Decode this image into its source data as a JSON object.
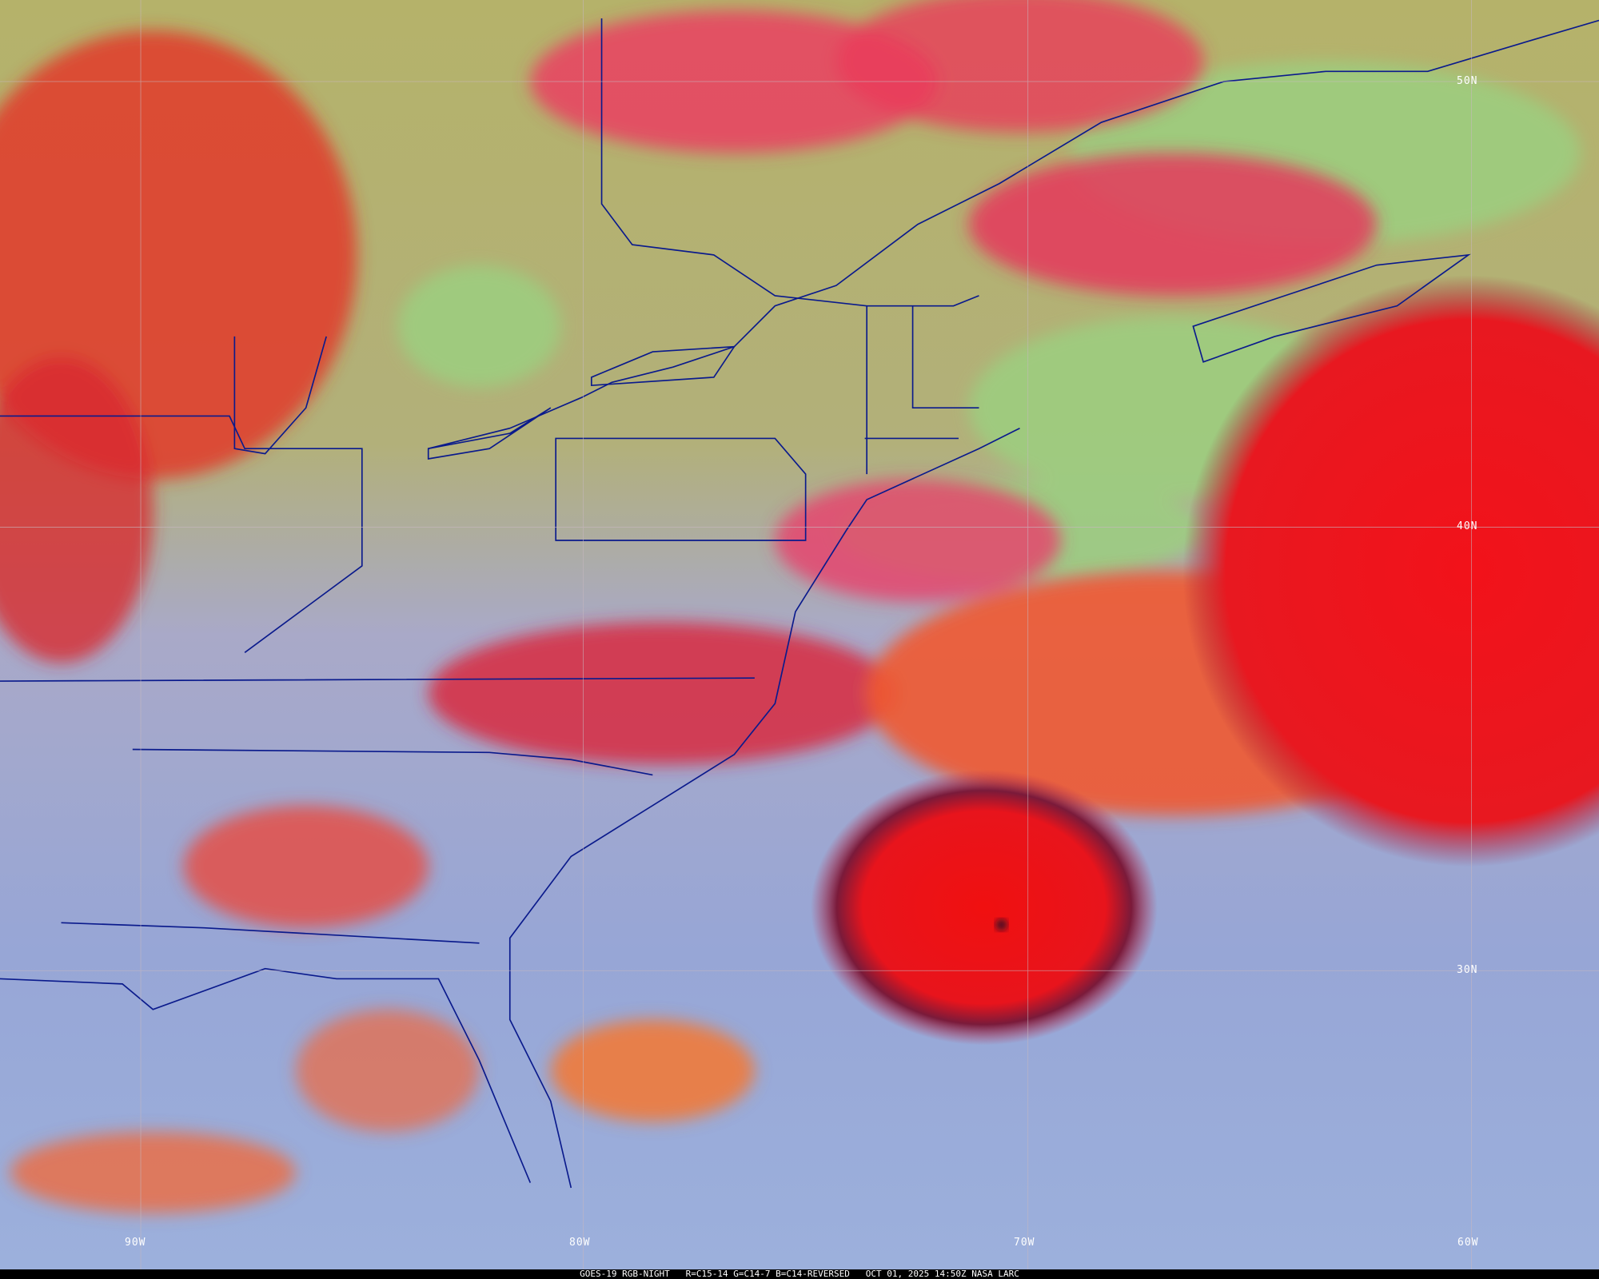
{
  "caption": {
    "satellite": "GOES-19 RGB-NIGHT",
    "channels": "R=C15-14 G=C14-7 B=C14-REVERSED",
    "datetime": "OCT 01, 2025 14:50Z",
    "source": "NASA LARC"
  },
  "grid": {
    "latitudes": [
      "50N",
      "40N",
      "30N"
    ],
    "longitudes": [
      "90W",
      "80W",
      "70W",
      "60W"
    ],
    "line_color": "#b8a8b0"
  },
  "colors": {
    "clear_land_north": "#b3b26c",
    "lake_water": "#97cf7e",
    "clear_south": "#98a6d8",
    "cold_cloud": "#ee1c24",
    "mid_cloud": "#f07a3a",
    "borders": "#0a1a8c"
  }
}
